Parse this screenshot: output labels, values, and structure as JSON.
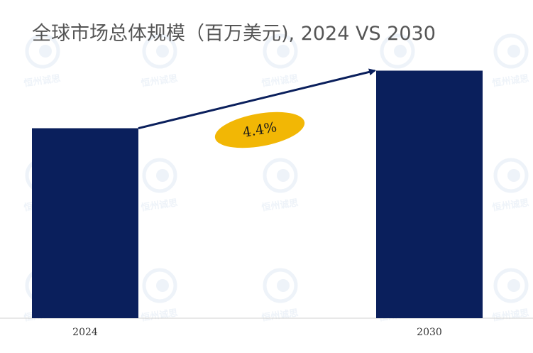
{
  "chart_data": {
    "type": "bar",
    "title": "全球市场总体规模（百万美元), 2024 VS 2030",
    "categories": [
      "2024",
      "2030"
    ],
    "values": [
      264,
      344
    ],
    "ylim": [
      0,
      380
    ],
    "bar_color": "#0a1f5c",
    "arrow_color": "#0a1f5c",
    "growth_label": "4.4%",
    "growth_badge_color": "#f2b705",
    "grid": false,
    "legend": "none"
  },
  "watermark": {
    "text": "恒州诚思",
    "color": "#7ea4cc"
  }
}
